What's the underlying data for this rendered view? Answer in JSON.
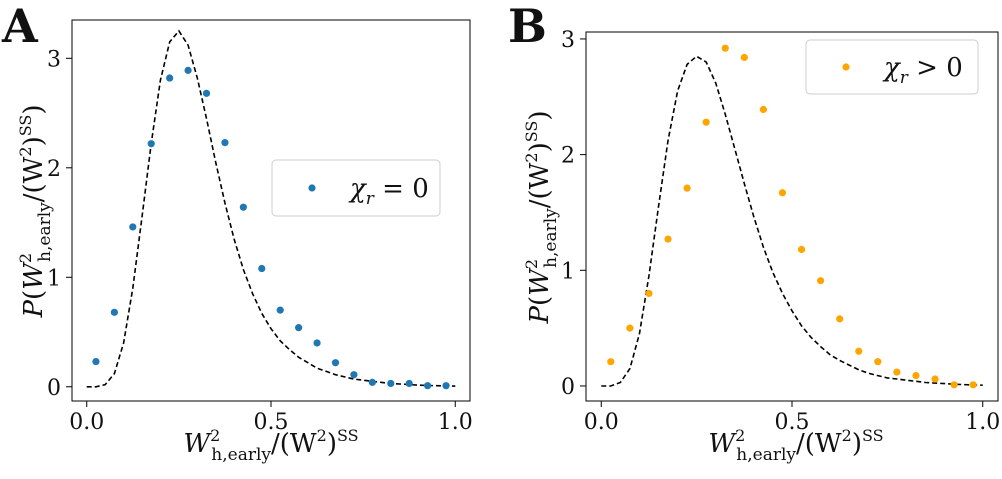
{
  "colors": {
    "panel_a_points": "#1f77b4",
    "panel_b_points": "#ffa500",
    "fit_curve": "#000000",
    "axes": "#000000"
  },
  "chart_data": [
    {
      "panel": "A",
      "type": "scatter",
      "xlabel": "W²_{h,early}/(W²)^{SS}",
      "xlabel_parts": {
        "prefix": "W",
        "sup1": "2",
        "sub": "h,early",
        "mid": "/(W",
        "sup2": "2",
        "close": ")",
        "sup3": "SS"
      },
      "ylabel": "P(W²_{h,early}/(W²)^{SS})",
      "ylabel_parts": {
        "prefix": "P(W",
        "sup1": "2",
        "sub": "h,early",
        "mid": "/(W",
        "sup2": "2",
        "close": ")",
        "sup3": "SS",
        "end": ")"
      },
      "xlim": [
        -0.04,
        1.04
      ],
      "ylim": [
        -0.13,
        3.35
      ],
      "x_ticks": [
        0.0,
        0.5,
        1.0
      ],
      "x_tick_labels": [
        "0.0",
        "0.5",
        "1.0"
      ],
      "y_ticks": [
        0,
        1,
        2,
        3
      ],
      "y_tick_labels": [
        "0",
        "1",
        "2",
        "3"
      ],
      "legend": {
        "label_var": "χ",
        "label_sub": "r",
        "label_rel": " = 0",
        "placement": "center-right"
      },
      "series": [
        {
          "name": "χr = 0",
          "kind": "scatter",
          "x": [
            0.025,
            0.075,
            0.125,
            0.175,
            0.225,
            0.275,
            0.325,
            0.375,
            0.425,
            0.475,
            0.525,
            0.575,
            0.625,
            0.675,
            0.725,
            0.775,
            0.825,
            0.875,
            0.925,
            0.975
          ],
          "y": [
            0.23,
            0.68,
            1.46,
            2.22,
            2.82,
            2.89,
            2.68,
            2.23,
            1.64,
            1.08,
            0.7,
            0.54,
            0.4,
            0.22,
            0.11,
            0.04,
            0.03,
            0.03,
            0.01,
            0.01
          ]
        },
        {
          "name": "fit",
          "kind": "line",
          "style": "dashed",
          "x": [
            0.0,
            0.025,
            0.05,
            0.075,
            0.1,
            0.125,
            0.15,
            0.175,
            0.2,
            0.225,
            0.25,
            0.275,
            0.3,
            0.325,
            0.35,
            0.375,
            0.4,
            0.425,
            0.45,
            0.475,
            0.5,
            0.525,
            0.55,
            0.575,
            0.6,
            0.625,
            0.65,
            0.675,
            0.7,
            0.725,
            0.75,
            0.775,
            0.8,
            0.825,
            0.85,
            0.875,
            0.9,
            0.925,
            0.95,
            0.975,
            1.0
          ],
          "y": [
            0.0,
            0.0,
            0.02,
            0.12,
            0.4,
            0.9,
            1.55,
            2.22,
            2.8,
            3.15,
            3.25,
            3.12,
            2.82,
            2.45,
            2.05,
            1.68,
            1.35,
            1.07,
            0.85,
            0.67,
            0.53,
            0.42,
            0.34,
            0.27,
            0.22,
            0.17,
            0.14,
            0.11,
            0.09,
            0.07,
            0.06,
            0.05,
            0.04,
            0.03,
            0.025,
            0.02,
            0.015,
            0.012,
            0.01,
            0.008,
            0.006
          ]
        }
      ]
    },
    {
      "panel": "B",
      "type": "scatter",
      "xlabel": "W²_{h,early}/(W²)^{SS}",
      "xlabel_parts": {
        "prefix": "W",
        "sup1": "2",
        "sub": "h,early",
        "mid": "/(W",
        "sup2": "2",
        "close": ")",
        "sup3": "SS"
      },
      "ylabel": "P(W²_{h,early}/(W²)^{SS})",
      "ylabel_parts": {
        "prefix": "P(W",
        "sup1": "2",
        "sub": "h,early",
        "mid": "/(W",
        "sup2": "2",
        "close": ")",
        "sup3": "SS",
        "end": ")"
      },
      "xlim": [
        -0.04,
        1.04
      ],
      "ylim": [
        -0.13,
        3.06
      ],
      "x_ticks": [
        0.0,
        0.5,
        1.0
      ],
      "x_tick_labels": [
        "0.0",
        "0.5",
        "1.0"
      ],
      "y_ticks": [
        0,
        1,
        2,
        3
      ],
      "y_tick_labels": [
        "0",
        "1",
        "2",
        "3"
      ],
      "legend": {
        "label_var": "χ",
        "label_sub": "r",
        "label_rel": " > 0",
        "placement": "top-right"
      },
      "series": [
        {
          "name": "χr > 0",
          "kind": "scatter",
          "x": [
            0.025,
            0.075,
            0.125,
            0.175,
            0.225,
            0.275,
            0.325,
            0.375,
            0.425,
            0.475,
            0.525,
            0.575,
            0.625,
            0.675,
            0.725,
            0.775,
            0.825,
            0.875,
            0.925,
            0.975
          ],
          "y": [
            0.21,
            0.5,
            0.8,
            1.27,
            1.71,
            2.28,
            2.92,
            2.84,
            2.39,
            1.67,
            1.18,
            0.91,
            0.58,
            0.3,
            0.21,
            0.12,
            0.09,
            0.06,
            0.01,
            0.01
          ]
        },
        {
          "name": "fit",
          "kind": "line",
          "style": "dashed",
          "x": [
            0.0,
            0.025,
            0.05,
            0.075,
            0.1,
            0.125,
            0.15,
            0.175,
            0.2,
            0.225,
            0.25,
            0.275,
            0.3,
            0.325,
            0.35,
            0.375,
            0.4,
            0.425,
            0.45,
            0.475,
            0.5,
            0.525,
            0.55,
            0.575,
            0.6,
            0.625,
            0.65,
            0.675,
            0.7,
            0.725,
            0.75,
            0.775,
            0.8,
            0.825,
            0.85,
            0.875,
            0.9,
            0.925,
            0.95,
            0.975,
            1.0
          ],
          "y": [
            0.0,
            0.0,
            0.03,
            0.15,
            0.45,
            0.95,
            1.55,
            2.12,
            2.55,
            2.78,
            2.85,
            2.8,
            2.62,
            2.35,
            2.05,
            1.75,
            1.46,
            1.2,
            0.98,
            0.8,
            0.65,
            0.52,
            0.42,
            0.34,
            0.27,
            0.22,
            0.18,
            0.14,
            0.11,
            0.09,
            0.07,
            0.06,
            0.05,
            0.04,
            0.03,
            0.025,
            0.02,
            0.015,
            0.012,
            0.009,
            0.007
          ]
        }
      ]
    }
  ]
}
